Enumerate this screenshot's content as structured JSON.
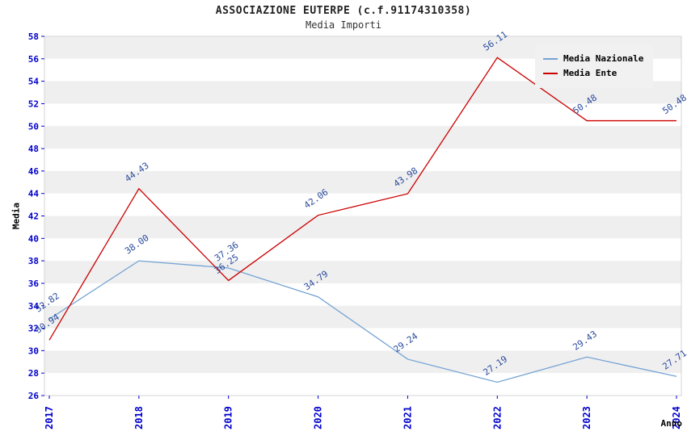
{
  "title": "ASSOCIAZIONE EUTERPE (c.f.91174310358)",
  "subtitle": "Media Importi",
  "axes": {
    "ylabel": "Media",
    "xlabel": "Anno"
  },
  "legend": {
    "items": [
      {
        "label": "Media Nazionale"
      },
      {
        "label": "Media Ente"
      }
    ]
  },
  "colors": {
    "tick_label": "#0000cc",
    "data_label": "#2a4b9c",
    "band": "#efefef",
    "legend_bg": "#f1f1f1",
    "series_nazionale": "#74a3d4",
    "series_ente": "#cc0000"
  },
  "chart_data": {
    "type": "line",
    "title": "ASSOCIAZIONE EUTERPE (c.f.91174310358)",
    "subtitle": "Media Importi",
    "xlabel": "Anno",
    "ylabel": "Media",
    "categories": [
      "2017",
      "2018",
      "2019",
      "2020",
      "2021",
      "2022",
      "2023",
      "2024"
    ],
    "series": [
      {
        "name": "Media Nazionale",
        "color": "#74a3d4",
        "values": [
          32.82,
          38.0,
          37.36,
          34.79,
          29.24,
          27.19,
          29.43,
          27.71
        ]
      },
      {
        "name": "Media Ente",
        "color": "#cc0000",
        "values": [
          30.94,
          44.43,
          36.25,
          42.06,
          43.98,
          56.11,
          50.48,
          50.48
        ]
      }
    ],
    "ylim": [
      26,
      58
    ],
    "ytick_step": 2,
    "grid": "horizontal-bands",
    "legend_position": "top-right"
  }
}
